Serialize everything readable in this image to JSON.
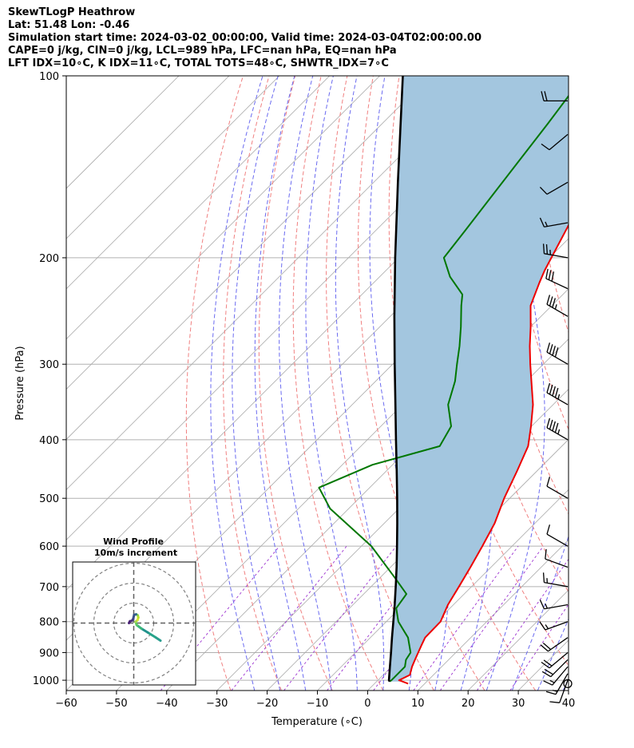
{
  "header": {
    "line1": "SkewTLogP Heathrow",
    "line2": "Lat: 51.48   Lon: -0.46",
    "line3": "Simulation start time: 2024-03-02_00:00:00, Valid time: 2024-03-04T02:00:00.00",
    "line4": "CAPE=0 j/kg, CIN=0 j/kg, LCL=989 hPa, LFC=nan hPa, EQ=nan hPa",
    "line5": "LFT IDX=10∘C, K IDX=11∘C, TOTAL TOTS=48∘C, SHWTR_IDX=7∘C"
  },
  "hodograph": {
    "title": "Wind Profile",
    "subtitle": "10m/s increment"
  },
  "chart_data": {
    "type": "line",
    "xlabel": "Temperature (∘C)",
    "ylabel": "Pressure (hPa)",
    "x_tick_labels": [
      "−60",
      "−50",
      "−40",
      "−30",
      "−20",
      "−10",
      "0",
      "10",
      "20",
      "30",
      "40"
    ],
    "x_ticks": [
      -60,
      -50,
      -40,
      -30,
      -20,
      -10,
      0,
      10,
      20,
      30,
      40
    ],
    "y_tick_labels": [
      "100",
      "200",
      "300",
      "400",
      "500",
      "600",
      "700",
      "800",
      "900",
      "1000"
    ],
    "y_ticks": [
      100,
      200,
      300,
      400,
      500,
      600,
      700,
      800,
      900,
      1000
    ],
    "xlim": [
      -60,
      40
    ],
    "ylim": [
      1040,
      100
    ],
    "y_scale": "log",
    "skew": "45-degree",
    "grid": true,
    "colors": {
      "temperature": "#ee0000",
      "dewpoint": "#007700",
      "parcel": "#000000",
      "shade": "#a3c6df",
      "dry_adiabat": "#f08080",
      "moist_adiabat": "#6a6af0",
      "mixing_ratio": "#9b30d0",
      "isotherm": "#aaaaaa"
    },
    "series": [
      {
        "points": [
          [
            1013,
            6.7
          ],
          [
            1000,
            4.2
          ],
          [
            980,
            5.3
          ],
          [
            950,
            4.1
          ],
          [
            925,
            3.3
          ],
          [
            900,
            2.5
          ],
          [
            875,
            1.7
          ],
          [
            850,
            0.9
          ],
          [
            800,
            0.8
          ],
          [
            750,
            -1.1
          ],
          [
            700,
            -2.5
          ],
          [
            650,
            -4.1
          ],
          [
            600,
            -5.9
          ],
          [
            550,
            -8.0
          ],
          [
            500,
            -11.1
          ],
          [
            450,
            -14.0
          ],
          [
            410,
            -16.7
          ],
          [
            380,
            -20.1
          ],
          [
            350,
            -24.0
          ],
          [
            320,
            -29.0
          ],
          [
            300,
            -32.6
          ],
          [
            280,
            -36.3
          ],
          [
            260,
            -40.0
          ],
          [
            240,
            -44.2
          ],
          [
            220,
            -47.0
          ],
          [
            210,
            -48.4
          ],
          [
            200,
            -49.6
          ],
          [
            180,
            -52.2
          ],
          [
            170,
            -53.6
          ],
          [
            150,
            -56.6
          ],
          [
            140,
            -58.5
          ],
          [
            130,
            -60.4
          ],
          [
            120,
            -62.4
          ],
          [
            110,
            -64.7
          ],
          [
            100,
            -67.2
          ]
        ]
      },
      {
        "points": [
          [
            1005,
            2.6
          ],
          [
            1000,
            2.7
          ],
          [
            950,
            2.7
          ],
          [
            925,
            1.5
          ],
          [
            900,
            1.0
          ],
          [
            850,
            -2.5
          ],
          [
            800,
            -7.6
          ],
          [
            760,
            -10.7
          ],
          [
            720,
            -11.5
          ],
          [
            680,
            -16.6
          ],
          [
            600,
            -28.0
          ],
          [
            520,
            -43.7
          ],
          [
            480,
            -50.1
          ],
          [
            440,
            -44.0
          ],
          [
            410,
            -34.3
          ],
          [
            380,
            -36.0
          ],
          [
            350,
            -40.9
          ],
          [
            320,
            -44.2
          ],
          [
            300,
            -47.2
          ],
          [
            280,
            -50.3
          ],
          [
            260,
            -53.9
          ],
          [
            240,
            -58.0
          ],
          [
            230,
            -60.0
          ],
          [
            215,
            -66.0
          ],
          [
            200,
            -71.0
          ],
          [
            180,
            -72.2
          ],
          [
            160,
            -73.6
          ],
          [
            140,
            -75.2
          ],
          [
            120,
            -77.0
          ],
          [
            100,
            -79.4
          ]
        ]
      },
      {
        "points": [
          [
            1005,
            2.6
          ],
          [
            1000,
            2.2
          ],
          [
            950,
            -0.3
          ],
          [
            900,
            -2.9
          ],
          [
            850,
            -5.7
          ],
          [
            800,
            -8.6
          ],
          [
            750,
            -11.7
          ],
          [
            700,
            -15.1
          ],
          [
            650,
            -18.8
          ],
          [
            600,
            -22.9
          ],
          [
            550,
            -27.4
          ],
          [
            500,
            -32.4
          ],
          [
            450,
            -38.0
          ],
          [
            400,
            -44.3
          ],
          [
            350,
            -51.4
          ],
          [
            300,
            -59.6
          ],
          [
            250,
            -69.2
          ],
          [
            200,
            -80.7
          ],
          [
            150,
            -95.2
          ],
          [
            100,
            -115.4
          ]
        ]
      }
    ],
    "wind_barbs": [
      {
        "p": 1013,
        "speed_kt": 0
      },
      {
        "p": 1000,
        "dir": 200,
        "speed_kt": 10
      },
      {
        "p": 975,
        "dir": 210,
        "speed_kt": 15
      },
      {
        "p": 950,
        "dir": 220,
        "speed_kt": 15
      },
      {
        "p": 925,
        "dir": 225,
        "speed_kt": 20
      },
      {
        "p": 900,
        "dir": 230,
        "speed_kt": 20
      },
      {
        "p": 850,
        "dir": 235,
        "speed_kt": 20
      },
      {
        "p": 800,
        "dir": 250,
        "speed_kt": 15
      },
      {
        "p": 750,
        "dir": 260,
        "speed_kt": 15
      },
      {
        "p": 700,
        "dir": 280,
        "speed_kt": 15
      },
      {
        "p": 650,
        "dir": 290,
        "speed_kt": 10
      },
      {
        "p": 600,
        "dir": 300,
        "speed_kt": 10
      },
      {
        "p": 500,
        "dir": 300,
        "speed_kt": 10
      },
      {
        "p": 400,
        "dir": 300,
        "speed_kt": 45
      },
      {
        "p": 350,
        "dir": 300,
        "speed_kt": 45
      },
      {
        "p": 300,
        "dir": 300,
        "speed_kt": 40
      },
      {
        "p": 250,
        "dir": 300,
        "speed_kt": 35
      },
      {
        "p": 225,
        "dir": 295,
        "speed_kt": 30
      },
      {
        "p": 200,
        "dir": 280,
        "speed_kt": 25
      },
      {
        "p": 175,
        "dir": 260,
        "speed_kt": 15
      },
      {
        "p": 150,
        "dir": 240,
        "speed_kt": 10
      },
      {
        "p": 125,
        "dir": 230,
        "speed_kt": 10
      },
      {
        "p": 110,
        "dir": 270,
        "speed_kt": 20
      }
    ],
    "hodograph_points_ms": [
      [
        13.4,
        -8.8
      ],
      [
        11.0,
        -7.2
      ],
      [
        7.0,
        -4.7
      ],
      [
        3.9,
        -2.8
      ],
      [
        1.5,
        -1.0
      ],
      [
        0.9,
        0.6
      ],
      [
        1.9,
        1.5
      ],
      [
        2.3,
        2.8
      ],
      [
        2.0,
        3.9
      ],
      [
        1.2,
        4.4
      ],
      [
        0.2,
        4.1
      ],
      [
        -0.3,
        2.0
      ],
      [
        -0.9,
        1.2
      ],
      [
        -1.9,
        0.9
      ],
      [
        -2.4,
        0.0
      ]
    ],
    "hodograph_rings_ms": [
      10,
      20,
      30
    ]
  }
}
